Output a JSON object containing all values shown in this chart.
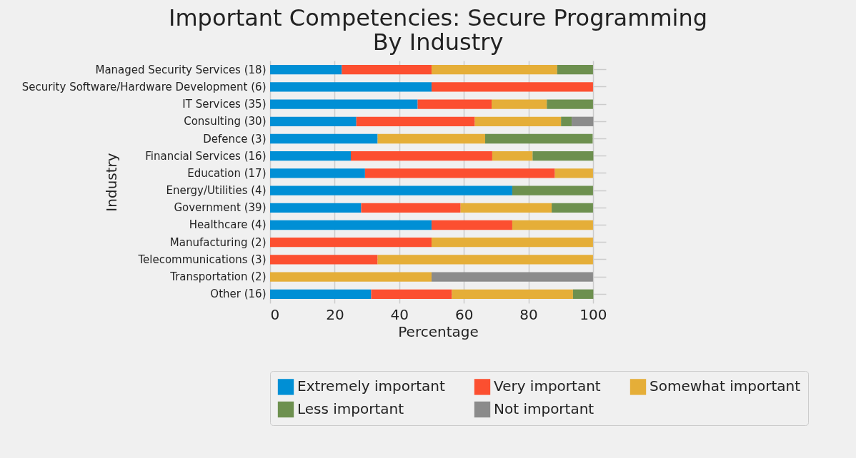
{
  "chart_data": {
    "type": "bar",
    "orientation": "horizontal",
    "stacked": true,
    "title": "Important Competencies: Secure Programming\nBy Industry",
    "xlabel": "Percentage",
    "ylabel": "Industry",
    "categories": [
      "Managed Security Services (18)",
      "Security Software/Hardware Development (6)",
      "IT Services (35)",
      "Consulting (30)",
      "Defence (3)",
      "Financial Services (16)",
      "Education (17)",
      "Energy/Utilities (4)",
      "Government (39)",
      "Healthcare (4)",
      "Manufacturing (2)",
      "Telecommunications (3)",
      "Transportation (2)",
      "Other (16)"
    ],
    "series": [
      {
        "name": "Extremely important",
        "color": "#008fd5",
        "values": [
          22.2,
          50,
          45.7,
          26.7,
          33.3,
          25,
          29.4,
          75,
          28.2,
          50,
          0,
          0,
          0,
          31.3
        ]
      },
      {
        "name": "Very important",
        "color": "#fc4f30",
        "values": [
          27.8,
          50,
          22.9,
          36.7,
          0,
          43.8,
          58.8,
          0,
          30.8,
          25,
          50,
          33.3,
          0,
          25
        ]
      },
      {
        "name": "Somewhat important",
        "color": "#e5ae38",
        "values": [
          38.9,
          0,
          17.1,
          26.7,
          33.3,
          12.5,
          11.8,
          0,
          28.2,
          25,
          50,
          66.7,
          50,
          37.5
        ]
      },
      {
        "name": "Less important",
        "color": "#6d904f",
        "values": [
          11.1,
          0,
          14.3,
          3.3,
          33.3,
          18.8,
          0,
          25,
          12.8,
          0,
          0,
          0,
          0,
          6.3
        ]
      },
      {
        "name": "Not important",
        "color": "#8b8b8b",
        "values": [
          0,
          0,
          0,
          6.7,
          0,
          0,
          0,
          0,
          0,
          0,
          0,
          0,
          50,
          0
        ]
      }
    ],
    "xlim": [
      0,
      104
    ],
    "xticks": [
      0,
      20,
      40,
      60,
      80,
      100
    ],
    "grid": true,
    "legend": "bottom"
  }
}
